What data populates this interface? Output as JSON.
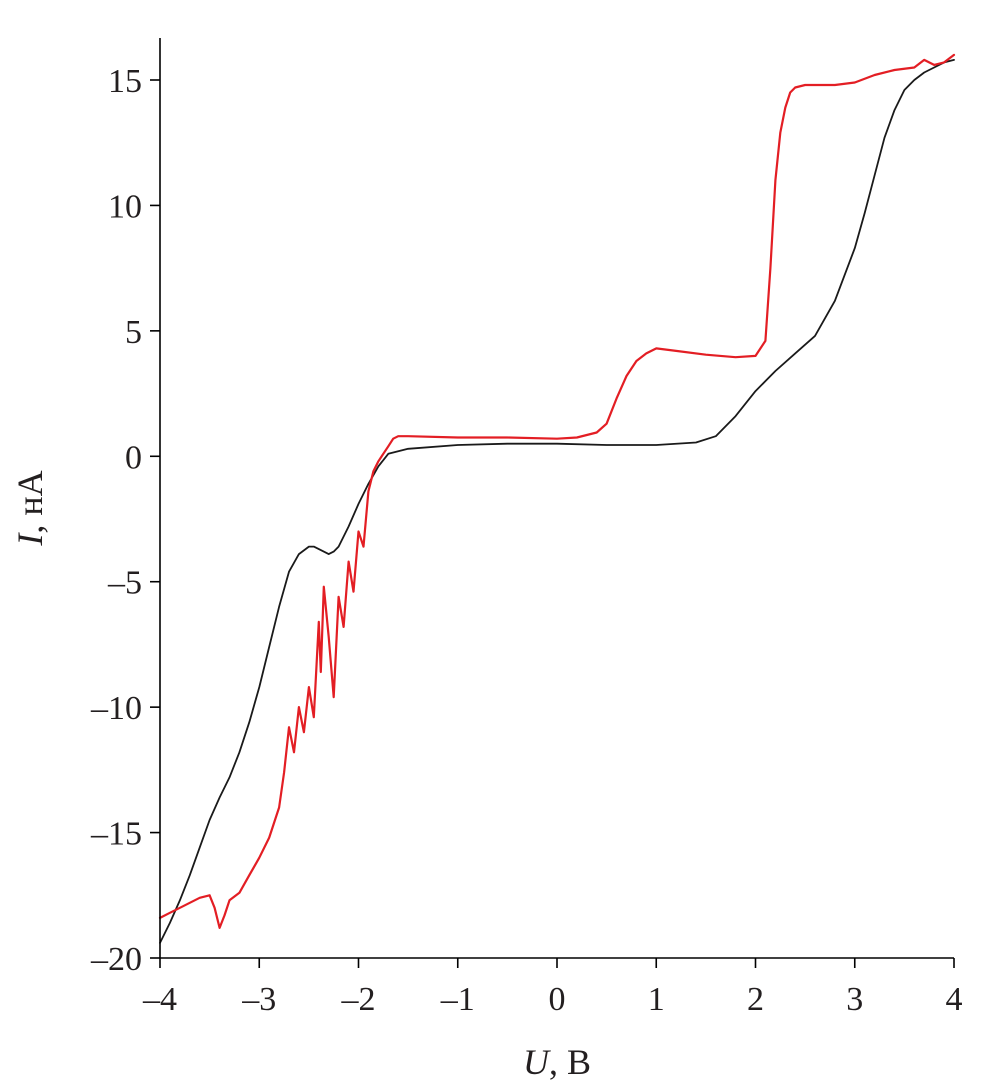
{
  "chart_data": {
    "type": "line",
    "xlabel": {
      "symbol": "U",
      "unit": ", В"
    },
    "ylabel": {
      "symbol": "I",
      "unit": ", нА"
    },
    "xlim": [
      -4,
      4
    ],
    "ylim": [
      -20,
      16.8
    ],
    "grid": false,
    "legend": "none",
    "x_ticks": [
      -4,
      -3,
      -2,
      -1,
      0,
      1,
      2,
      3,
      4
    ],
    "x_tick_labels": [
      "–4",
      "–3",
      "–2",
      "–1",
      "0",
      "1",
      "2",
      "3",
      "4"
    ],
    "y_ticks": [
      -20,
      -15,
      -10,
      -5,
      0,
      5,
      10,
      15
    ],
    "y_tick_labels": [
      "–20",
      "–15",
      "–10",
      "–5",
      "0",
      "5",
      "10",
      "15"
    ],
    "series": [
      {
        "color": "#1a1a1a",
        "x": [
          -4.0,
          -3.9,
          -3.8,
          -3.7,
          -3.6,
          -3.5,
          -3.4,
          -3.3,
          -3.2,
          -3.1,
          -3.0,
          -2.9,
          -2.8,
          -2.7,
          -2.6,
          -2.5,
          -2.45,
          -2.4,
          -2.3,
          -2.25,
          -2.2,
          -2.1,
          -2.0,
          -1.9,
          -1.8,
          -1.7,
          -1.5,
          -1.0,
          -0.5,
          0.0,
          0.5,
          1.0,
          1.4,
          1.6,
          1.8,
          2.0,
          2.2,
          2.4,
          2.6,
          2.8,
          3.0,
          3.1,
          3.2,
          3.3,
          3.4,
          3.5,
          3.6,
          3.7,
          3.8,
          3.9,
          4.0
        ],
        "y": [
          -19.4,
          -18.6,
          -17.7,
          -16.7,
          -15.6,
          -14.5,
          -13.6,
          -12.8,
          -11.8,
          -10.6,
          -9.2,
          -7.6,
          -6.0,
          -4.6,
          -3.9,
          -3.6,
          -3.6,
          -3.7,
          -3.9,
          -3.8,
          -3.6,
          -2.8,
          -1.9,
          -1.1,
          -0.4,
          0.1,
          0.3,
          0.45,
          0.5,
          0.5,
          0.45,
          0.45,
          0.55,
          0.8,
          1.6,
          2.6,
          3.4,
          4.1,
          4.8,
          6.2,
          8.3,
          9.7,
          11.2,
          12.7,
          13.8,
          14.6,
          15.0,
          15.3,
          15.5,
          15.7,
          15.8
        ]
      },
      {
        "color": "#e31e24",
        "x": [
          -4.0,
          -3.9,
          -3.8,
          -3.7,
          -3.6,
          -3.5,
          -3.45,
          -3.4,
          -3.35,
          -3.3,
          -3.2,
          -3.1,
          -3.0,
          -2.9,
          -2.8,
          -2.75,
          -2.7,
          -2.65,
          -2.6,
          -2.55,
          -2.5,
          -2.45,
          -2.4,
          -2.38,
          -2.35,
          -2.3,
          -2.25,
          -2.2,
          -2.15,
          -2.1,
          -2.05,
          -2.0,
          -1.95,
          -1.9,
          -1.85,
          -1.8,
          -1.75,
          -1.7,
          -1.65,
          -1.6,
          -1.5,
          -1.0,
          -0.5,
          0.0,
          0.2,
          0.4,
          0.5,
          0.6,
          0.7,
          0.8,
          0.9,
          1.0,
          1.2,
          1.5,
          1.8,
          2.0,
          2.1,
          2.15,
          2.2,
          2.25,
          2.3,
          2.35,
          2.4,
          2.5,
          2.6,
          2.8,
          3.0,
          3.2,
          3.4,
          3.6,
          3.7,
          3.8,
          3.9,
          4.0
        ],
        "y": [
          -18.4,
          -18.2,
          -18.0,
          -17.8,
          -17.6,
          -17.5,
          -18.0,
          -18.8,
          -18.3,
          -17.7,
          -17.4,
          -16.7,
          -16.0,
          -15.2,
          -14.0,
          -12.6,
          -10.8,
          -11.8,
          -10.0,
          -11.0,
          -9.2,
          -10.4,
          -6.6,
          -8.6,
          -5.2,
          -7.2,
          -9.6,
          -5.6,
          -6.8,
          -4.2,
          -5.4,
          -3.0,
          -3.6,
          -1.4,
          -0.6,
          -0.2,
          0.1,
          0.4,
          0.7,
          0.8,
          0.8,
          0.75,
          0.75,
          0.7,
          0.75,
          0.95,
          1.3,
          2.3,
          3.2,
          3.8,
          4.1,
          4.3,
          4.2,
          4.05,
          3.95,
          4.0,
          4.6,
          7.5,
          11.0,
          12.9,
          13.9,
          14.5,
          14.7,
          14.8,
          14.8,
          14.8,
          14.9,
          15.2,
          15.4,
          15.5,
          15.8,
          15.6,
          15.7,
          16.0
        ]
      }
    ]
  }
}
